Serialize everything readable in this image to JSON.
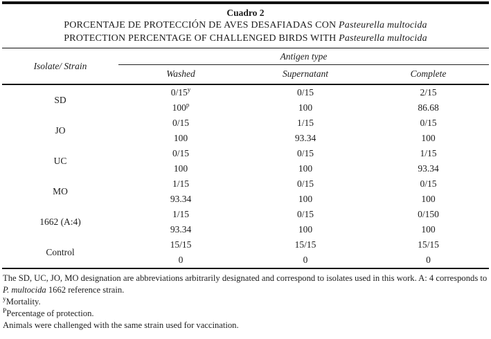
{
  "table": {
    "caption": "Cuadro 2",
    "title_es_prefix": "PORCENTAJE DE PROTECCIÓN DE AVES DESAFIADAS CON ",
    "title_es_species": "Pasteurella multocida",
    "title_en_prefix": "PROTECTION PERCENTAGE OF CHALLENGED BIRDS WITH ",
    "title_en_species": "Pasteurella multocida",
    "isolate_header": "Isolate/ Strain",
    "antigen_group_header": "Antigen type",
    "antigen_columns": [
      "Washed",
      "Supernatant",
      "Complete"
    ],
    "rows": [
      {
        "strain": "SD",
        "challenged": [
          "0/15",
          "0/15",
          "2/15"
        ],
        "challenged_sups": [
          "y",
          "",
          ""
        ],
        "protection": [
          "100",
          "100",
          "86.68"
        ],
        "protection_sups": [
          "p",
          "",
          ""
        ]
      },
      {
        "strain": "JO",
        "challenged": [
          "0/15",
          "1/15",
          "0/15"
        ],
        "challenged_sups": [
          "",
          "",
          ""
        ],
        "protection": [
          "100",
          "93.34",
          "100"
        ],
        "protection_sups": [
          "",
          "",
          ""
        ]
      },
      {
        "strain": "UC",
        "challenged": [
          "0/15",
          "0/15",
          "1/15"
        ],
        "challenged_sups": [
          "",
          "",
          ""
        ],
        "protection": [
          "100",
          "100",
          "93.34"
        ],
        "protection_sups": [
          "",
          "",
          ""
        ]
      },
      {
        "strain": "MO",
        "challenged": [
          "1/15",
          "0/15",
          "0/15"
        ],
        "challenged_sups": [
          "",
          "",
          ""
        ],
        "protection": [
          "93.34",
          "100",
          "100"
        ],
        "protection_sups": [
          "",
          "",
          ""
        ]
      },
      {
        "strain": "1662 (A:4)",
        "challenged": [
          "1/15",
          "0/15",
          "0/150"
        ],
        "challenged_sups": [
          "",
          "",
          ""
        ],
        "protection": [
          "93.34",
          "100",
          "100"
        ],
        "protection_sups": [
          "",
          "",
          ""
        ]
      },
      {
        "strain": "Control",
        "challenged": [
          "15/15",
          "15/15",
          "15/15"
        ],
        "challenged_sups": [
          "",
          "",
          ""
        ],
        "protection": [
          "0",
          "0",
          "0"
        ],
        "protection_sups": [
          "",
          "",
          ""
        ]
      }
    ]
  },
  "footnotes": [
    [
      {
        "t": "The SD, UC, JO, MO designation are abbreviations arbitrarily designated and correspond to isolates used in this work. A: 4 corresponds to "
      },
      {
        "t": "P. multocida",
        "italic": true
      },
      {
        "t": " 1662 reference strain."
      }
    ],
    [
      {
        "t": "y",
        "sup": true
      },
      {
        "t": "Mortality."
      }
    ],
    [
      {
        "t": "P",
        "sup": true
      },
      {
        "t": "Percentage of protection."
      }
    ],
    [
      {
        "t": "Animals were challenged with the same strain used for vaccination."
      }
    ]
  ],
  "colors": {
    "text": "#1c1c1c",
    "rule": "#111111",
    "background": "#ffffff"
  }
}
